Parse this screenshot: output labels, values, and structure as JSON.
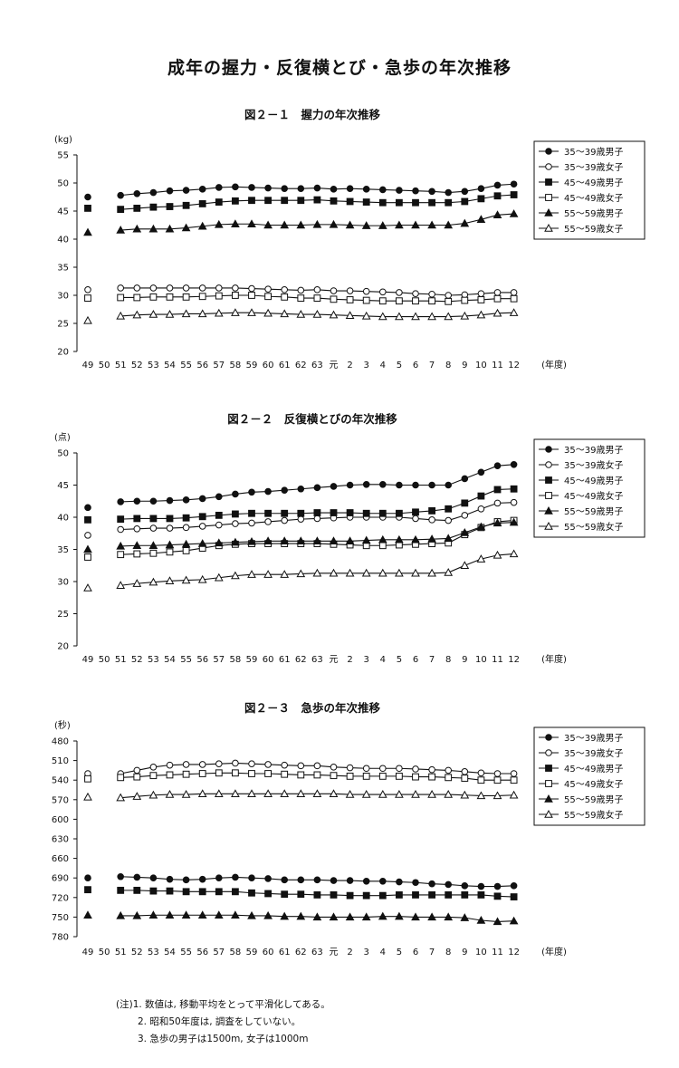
{
  "page": {
    "title": "成年の握力・反復横とび・急歩の年次推移",
    "notes": [
      "(注)1. 数値は, 移動平均をとって平滑化してある。",
      "2. 昭和50年度は, 調査をしていない。",
      "3. 急歩の男子は1500m, 女子は1000m"
    ]
  },
  "chart_data": [
    {
      "type": "line",
      "title": "図２－１　握力の年次推移",
      "ylabel": "(kg)",
      "xlabel": "(年度)",
      "ylim": [
        20,
        55
      ],
      "yticks": [
        20,
        25,
        30,
        35,
        40,
        45,
        50,
        55
      ],
      "reverse_y": false,
      "legend_position": "top-right",
      "categories": [
        "49",
        "50",
        "51",
        "52",
        "53",
        "54",
        "55",
        "56",
        "57",
        "58",
        "59",
        "60",
        "61",
        "62",
        "63",
        "元",
        "2",
        "3",
        "4",
        "5",
        "6",
        "7",
        "8",
        "9",
        "10",
        "11",
        "12"
      ],
      "series": [
        {
          "name": "35～39歳男子",
          "marker": "circle-filled",
          "values": [
            47.5,
            null,
            47.8,
            48.1,
            48.3,
            48.6,
            48.7,
            48.9,
            49.2,
            49.3,
            49.2,
            49.1,
            49.0,
            49.0,
            49.1,
            48.9,
            49.0,
            48.9,
            48.8,
            48.7,
            48.6,
            48.5,
            48.3,
            48.5,
            49.0,
            49.6,
            49.8
          ]
        },
        {
          "name": "35～39歳女子",
          "marker": "circle-open",
          "values": [
            31.0,
            null,
            31.3,
            31.3,
            31.3,
            31.3,
            31.3,
            31.3,
            31.3,
            31.3,
            31.2,
            31.1,
            31.0,
            30.9,
            31.0,
            30.8,
            30.8,
            30.7,
            30.6,
            30.5,
            30.3,
            30.2,
            30.0,
            30.1,
            30.3,
            30.5,
            30.5
          ]
        },
        {
          "name": "45～49歳男子",
          "marker": "square-filled",
          "values": [
            45.5,
            null,
            45.3,
            45.5,
            45.7,
            45.8,
            46.0,
            46.3,
            46.6,
            46.8,
            46.9,
            46.9,
            46.9,
            46.9,
            47.0,
            46.8,
            46.7,
            46.6,
            46.5,
            46.5,
            46.5,
            46.5,
            46.5,
            46.7,
            47.2,
            47.7,
            47.9
          ]
        },
        {
          "name": "45～49歳女子",
          "marker": "square-open",
          "values": [
            29.5,
            null,
            29.6,
            29.6,
            29.7,
            29.7,
            29.7,
            29.8,
            29.9,
            30.0,
            30.0,
            29.8,
            29.7,
            29.5,
            29.5,
            29.3,
            29.2,
            29.1,
            29.0,
            29.0,
            29.0,
            29.0,
            28.9,
            29.1,
            29.2,
            29.4,
            29.4
          ]
        },
        {
          "name": "55～59歳男子",
          "marker": "triangle-filled",
          "values": [
            41.2,
            null,
            41.6,
            41.8,
            41.8,
            41.8,
            42.0,
            42.3,
            42.6,
            42.7,
            42.7,
            42.5,
            42.5,
            42.5,
            42.6,
            42.6,
            42.5,
            42.4,
            42.4,
            42.5,
            42.5,
            42.5,
            42.5,
            42.8,
            43.5,
            44.3,
            44.5
          ]
        },
        {
          "name": "55～59歳女子",
          "marker": "triangle-open",
          "values": [
            25.5,
            null,
            26.3,
            26.5,
            26.6,
            26.6,
            26.7,
            26.7,
            26.8,
            26.9,
            26.9,
            26.8,
            26.7,
            26.6,
            26.6,
            26.5,
            26.4,
            26.3,
            26.2,
            26.2,
            26.2,
            26.2,
            26.2,
            26.3,
            26.5,
            26.8,
            26.9
          ]
        }
      ]
    },
    {
      "type": "line",
      "title": "図２－２　反復横とびの年次推移",
      "ylabel": "(点)",
      "xlabel": "(年度)",
      "ylim": [
        20,
        50
      ],
      "yticks": [
        20,
        25,
        30,
        35,
        40,
        45,
        50
      ],
      "reverse_y": false,
      "legend_position": "top-right",
      "categories": [
        "49",
        "50",
        "51",
        "52",
        "53",
        "54",
        "55",
        "56",
        "57",
        "58",
        "59",
        "60",
        "61",
        "62",
        "63",
        "元",
        "2",
        "3",
        "4",
        "5",
        "6",
        "7",
        "8",
        "9",
        "10",
        "11",
        "12"
      ],
      "series": [
        {
          "name": "35～39歳男子",
          "marker": "circle-filled",
          "values": [
            41.5,
            null,
            42.4,
            42.5,
            42.5,
            42.6,
            42.7,
            42.9,
            43.2,
            43.6,
            43.9,
            44.0,
            44.2,
            44.4,
            44.6,
            44.8,
            45.0,
            45.1,
            45.1,
            45.0,
            45.0,
            45.0,
            45.0,
            46.0,
            47.0,
            48.0,
            48.2
          ]
        },
        {
          "name": "35～39歳女子",
          "marker": "circle-open",
          "values": [
            37.2,
            null,
            38.1,
            38.2,
            38.3,
            38.3,
            38.4,
            38.6,
            38.8,
            39.0,
            39.1,
            39.3,
            39.5,
            39.7,
            39.8,
            39.9,
            40.0,
            40.0,
            40.0,
            40.0,
            39.8,
            39.6,
            39.5,
            40.3,
            41.3,
            42.2,
            42.3
          ]
        },
        {
          "name": "45～49歳男子",
          "marker": "square-filled",
          "values": [
            39.6,
            null,
            39.7,
            39.8,
            39.8,
            39.8,
            39.9,
            40.1,
            40.3,
            40.5,
            40.6,
            40.6,
            40.6,
            40.6,
            40.7,
            40.7,
            40.7,
            40.6,
            40.6,
            40.6,
            40.8,
            41.0,
            41.3,
            42.2,
            43.3,
            44.3,
            44.4
          ]
        },
        {
          "name": "45～49歳女子",
          "marker": "square-open",
          "values": [
            33.8,
            null,
            34.2,
            34.3,
            34.4,
            34.6,
            34.8,
            35.2,
            35.6,
            35.8,
            35.9,
            35.9,
            35.9,
            35.9,
            35.9,
            35.8,
            35.7,
            35.6,
            35.6,
            35.7,
            35.8,
            35.9,
            36.0,
            37.3,
            38.4,
            39.3,
            39.5
          ]
        },
        {
          "name": "55～59歳男子",
          "marker": "triangle-filled",
          "values": [
            35.0,
            null,
            35.5,
            35.6,
            35.6,
            35.7,
            35.8,
            35.9,
            36.0,
            36.1,
            36.2,
            36.3,
            36.3,
            36.3,
            36.3,
            36.3,
            36.3,
            36.4,
            36.5,
            36.5,
            36.5,
            36.6,
            36.7,
            37.6,
            38.5,
            39.1,
            39.2
          ]
        },
        {
          "name": "55～59歳女子",
          "marker": "triangle-open",
          "values": [
            29.0,
            null,
            29.4,
            29.7,
            29.9,
            30.1,
            30.2,
            30.3,
            30.6,
            30.9,
            31.1,
            31.1,
            31.1,
            31.2,
            31.3,
            31.3,
            31.3,
            31.3,
            31.3,
            31.3,
            31.3,
            31.3,
            31.4,
            32.5,
            33.5,
            34.1,
            34.3
          ]
        }
      ]
    },
    {
      "type": "line",
      "title": "図２－３　急歩の年次推移",
      "ylabel": "(秒)",
      "xlabel": "(年度)",
      "ylim": [
        480,
        780
      ],
      "yticks": [
        480,
        510,
        540,
        570,
        600,
        630,
        660,
        690,
        720,
        750,
        780
      ],
      "reverse_y": true,
      "legend_position": "top-right",
      "categories": [
        "49",
        "50",
        "51",
        "52",
        "53",
        "54",
        "55",
        "56",
        "57",
        "58",
        "59",
        "60",
        "61",
        "62",
        "63",
        "元",
        "2",
        "3",
        "4",
        "5",
        "6",
        "7",
        "8",
        "9",
        "10",
        "11",
        "12"
      ],
      "series": [
        {
          "name": "35～39歳男子",
          "marker": "circle-filled",
          "values": [
            690,
            null,
            688,
            689,
            690,
            692,
            693,
            692,
            690,
            689,
            690,
            691,
            693,
            693,
            693,
            694,
            694,
            695,
            695,
            696,
            697,
            699,
            700,
            702,
            703,
            703,
            702
          ]
        },
        {
          "name": "35～39歳女子",
          "marker": "circle-open",
          "values": [
            530,
            null,
            530,
            525,
            520,
            517,
            516,
            516,
            515,
            514,
            515,
            516,
            517,
            518,
            518,
            520,
            521,
            522,
            522,
            522,
            523,
            524,
            525,
            527,
            529,
            530,
            530
          ]
        },
        {
          "name": "45～49歳男子",
          "marker": "square-filled",
          "values": [
            708,
            null,
            709,
            709,
            710,
            710,
            711,
            711,
            711,
            711,
            713,
            714,
            715,
            715,
            716,
            716,
            717,
            717,
            717,
            716,
            716,
            716,
            716,
            716,
            716,
            718,
            719
          ]
        },
        {
          "name": "45～49歳女子",
          "marker": "square-open",
          "values": [
            538,
            null,
            536,
            535,
            533,
            532,
            531,
            530,
            529,
            529,
            530,
            530,
            531,
            532,
            532,
            533,
            534,
            534,
            534,
            534,
            535,
            535,
            536,
            537,
            540,
            540,
            540
          ]
        },
        {
          "name": "55～59歳男子",
          "marker": "triangle-filled",
          "values": [
            747,
            null,
            748,
            748,
            747,
            747,
            747,
            747,
            747,
            747,
            748,
            748,
            749,
            749,
            750,
            750,
            750,
            750,
            749,
            749,
            750,
            750,
            750,
            751,
            755,
            757,
            756
          ]
        },
        {
          "name": "55～59歳女子",
          "marker": "triangle-open",
          "values": [
            566,
            null,
            567,
            565,
            563,
            562,
            562,
            561,
            561,
            561,
            561,
            561,
            561,
            561,
            561,
            561,
            562,
            562,
            562,
            562,
            562,
            562,
            562,
            563,
            564,
            564,
            563
          ]
        }
      ]
    }
  ]
}
